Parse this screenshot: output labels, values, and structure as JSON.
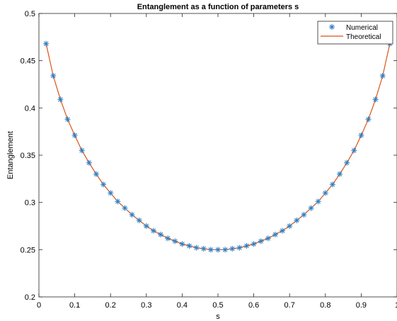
{
  "chart_data": {
    "type": "line",
    "title": "Entanglement as a function of parameters s",
    "xlabel": "s",
    "ylabel": "Entanglement",
    "xlim": [
      0,
      1
    ],
    "ylim": [
      0.2,
      0.5
    ],
    "xticks": [
      0,
      0.1,
      0.2,
      0.3,
      0.4,
      0.5,
      0.6,
      0.7,
      0.8,
      0.9,
      1
    ],
    "xtick_labels": [
      "0",
      "0.1",
      "0.2",
      "0.3",
      "0.4",
      "0.5",
      "0.6",
      "0.7",
      "0.8",
      "0.9",
      "1"
    ],
    "yticks": [
      0.2,
      0.25,
      0.3,
      0.35,
      0.4,
      0.45,
      0.5
    ],
    "ytick_labels": [
      "0.2",
      "0.25",
      "0.3",
      "0.35",
      "0.4",
      "0.45",
      "0.5"
    ],
    "grid": false,
    "legend_position": "top-right",
    "x": [
      0.02,
      0.04,
      0.06,
      0.08,
      0.1,
      0.12,
      0.14,
      0.16,
      0.18,
      0.2,
      0.22,
      0.24,
      0.26,
      0.28,
      0.3,
      0.32,
      0.34,
      0.36,
      0.38,
      0.4,
      0.42,
      0.44,
      0.46,
      0.48,
      0.5,
      0.52,
      0.54,
      0.56,
      0.58,
      0.6,
      0.62,
      0.64,
      0.66,
      0.68,
      0.7,
      0.72,
      0.74,
      0.76,
      0.78,
      0.8,
      0.82,
      0.84,
      0.86,
      0.88,
      0.9,
      0.92,
      0.94,
      0.96,
      0.98
    ],
    "series": [
      {
        "name": "Numerical",
        "style": "marker",
        "marker": "asterisk",
        "color": "#2f7fc1",
        "values": [
          0.468,
          0.434,
          0.409,
          0.388,
          0.371,
          0.355,
          0.342,
          0.33,
          0.319,
          0.31,
          0.301,
          0.294,
          0.287,
          0.281,
          0.275,
          0.27,
          0.266,
          0.262,
          0.259,
          0.256,
          0.254,
          0.252,
          0.251,
          0.25,
          0.25,
          0.25,
          0.251,
          0.252,
          0.254,
          0.256,
          0.259,
          0.262,
          0.266,
          0.27,
          0.275,
          0.281,
          0.287,
          0.294,
          0.301,
          0.31,
          0.319,
          0.33,
          0.342,
          0.355,
          0.371,
          0.388,
          0.409,
          0.434,
          0.468
        ]
      },
      {
        "name": "Theoretical",
        "style": "line",
        "color": "#d95319",
        "values": [
          0.468,
          0.434,
          0.409,
          0.388,
          0.371,
          0.355,
          0.342,
          0.33,
          0.319,
          0.31,
          0.301,
          0.294,
          0.287,
          0.281,
          0.275,
          0.27,
          0.266,
          0.262,
          0.259,
          0.256,
          0.254,
          0.252,
          0.251,
          0.25,
          0.25,
          0.25,
          0.251,
          0.252,
          0.254,
          0.256,
          0.259,
          0.262,
          0.266,
          0.27,
          0.275,
          0.281,
          0.287,
          0.294,
          0.301,
          0.31,
          0.319,
          0.33,
          0.342,
          0.355,
          0.371,
          0.388,
          0.409,
          0.434,
          0.468
        ]
      }
    ]
  }
}
